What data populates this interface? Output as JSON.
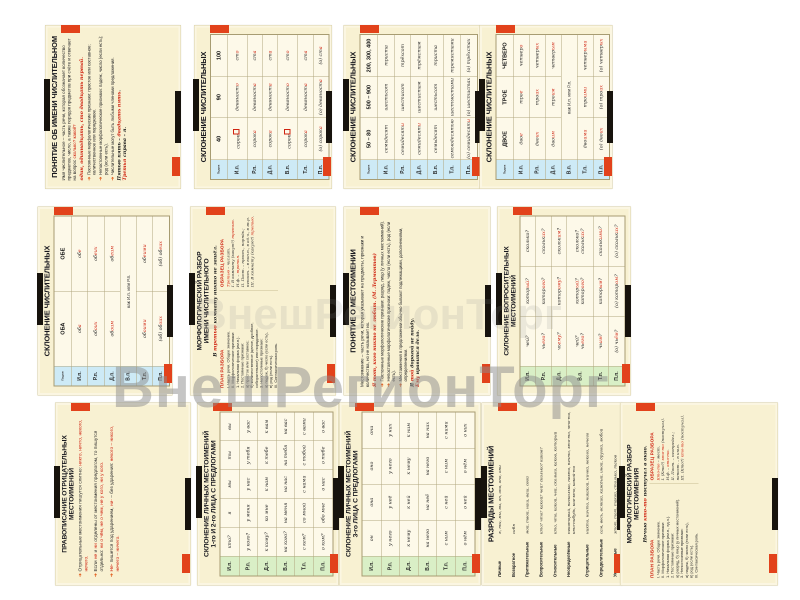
{
  "page": {
    "background": "#ffffff"
  },
  "watermark": {
    "text": "ВнешРегионТорг",
    "text_faint": "ВнешРегионТорг",
    "color": "#8d8d8d"
  },
  "colors": {
    "card_bg": "#f8f1d2",
    "table_bg": "#fdf9e9",
    "case_blue": "#cdeaf6",
    "case_green": "#d9efc6",
    "accent_red": "#cf2310",
    "publisher_orange": "#e2421b",
    "strip_black": "#17130d"
  },
  "cards": [
    {
      "id": "ponyatie-ob-imeni-chislitelnom",
      "type": "concept",
      "title": [
        "ПОНЯТИЕ ОБ ИМЕНИ ЧИСЛИТЕЛЬНОМ"
      ],
      "intro": "Имя числительное – часть речи, которая обозначает количество предметов, число, а также порядок предметов при счёте и отвечает на вопрос {сколько?} {какой?}",
      "redline": "один, одиннадцать, сто двадцать первый.",
      "bullets": [
        "Постоянные морфологические признаки: простое или составное; количественное или порядковое.",
        "Непостоянные морфологические признаки: падеж, число (если есть); род (если есть).",
        "Числительные могут быть любыми членами предложения."
      ],
      "examples": [
        "Пятью пять – {двадцать пять}.",
        "{Третья} справа – я."
      ]
    },
    {
      "id": "sklonenie-40-90-100",
      "type": "table",
      "case_color": "blue",
      "title": [
        "СКЛОНЕНИЕ ЧИСЛИТЕЛЬНЫХ"
      ],
      "corner": "Падеж",
      "header": [
        "40",
        "90",
        "100"
      ],
      "rows": [
        {
          "c": "И.п.",
          "cells": [
            "сорок{□}",
            "девяност{о}",
            "ст{о}"
          ]
        },
        {
          "c": "Р.п.",
          "cells": [
            "сорок{а}",
            "девяност{а}",
            "ст{а}"
          ]
        },
        {
          "c": "Д.п.",
          "cells": [
            "сорок{а}",
            "девяност{а}",
            "ст{а}"
          ]
        },
        {
          "c": "В.п.",
          "cells": [
            "сорок{□}",
            "девяност{о}",
            "ст{о}"
          ]
        },
        {
          "c": "Т.п.",
          "cells": [
            "сорок{а}",
            "девяност{а}",
            "ст{а}"
          ]
        },
        {
          "c": "П.п.",
          "cells": [
            "(о) сорок{а}",
            "(о) девяност{а}",
            "(о) ст{а}"
          ]
        }
      ]
    },
    {
      "id": "sklonenie-50-80-500-900",
      "type": "table",
      "case_color": "blue",
      "title": [
        "СКЛОНЕНИЕ ЧИСЛИТЕЛЬНЫХ"
      ],
      "corner": "Падеж",
      "header": [
        "50 – 80",
        "500 – 900",
        "200, 300, 400"
      ],
      "rows": [
        {
          "c": "И.п.",
          "cells": [
            "семьдесят",
            "шестьсот",
            "триста"
          ]
        },
        {
          "c": "Р.п.",
          "cells": [
            "семидесят{и}",
            "шестисот",
            "трёхсот"
          ]
        },
        {
          "c": "Д.п.",
          "cells": [
            "семидесят{и}",
            "шестистам",
            "трёмстам"
          ]
        },
        {
          "c": "В.п.",
          "cells": [
            "семьдесят",
            "шестьсот",
            "триста"
          ]
        },
        {
          "c": "Т.п.",
          "cells": [
            "семьюдесятью",
            "шестьюстами",
            "тремястами"
          ]
        },
        {
          "c": "П.п.",
          "cells": [
            "(о) семидесят{и}",
            "(о) шестистах",
            "(о) трёхстах"
          ]
        }
      ]
    },
    {
      "id": "sklonenie-dvoe-troe-chetvero",
      "type": "table",
      "case_color": "blue",
      "title": [
        "СКЛОНЕНИЕ ЧИСЛИТЕЛЬНЫХ"
      ],
      "corner": "Падеж",
      "header": [
        "ДВОЕ",
        "ТРОЕ",
        "ЧЕТВЕРО"
      ],
      "rows": [
        {
          "c": "И.п.",
          "cells": [
            "дво{е}",
            "тро{е}",
            "четвер{о}"
          ]
        },
        {
          "c": "Р.п.",
          "cells": [
            "дво{их}",
            "тро{их}",
            "четвер{ых}"
          ]
        },
        {
          "c": "Д.п.",
          "cells": [
            "дво{им}",
            "тро{им}",
            "четвер{ым}"
          ]
        },
        {
          "c": "В.п.",
          "merged": "как И.п. или Р.п."
        },
        {
          "c": "Т.п.",
          "cells": [
            "дво{ими}",
            "тро{ими}",
            "четвер{ыми}"
          ]
        },
        {
          "c": "П.п.",
          "cells": [
            "(о) дво{их}",
            "(о) тро{их}",
            "(о) четвер{ых}"
          ]
        }
      ]
    },
    {
      "id": "sklonenie-oba-obe",
      "type": "table",
      "case_color": "blue",
      "title": [
        "СКЛОНЕНИЕ ЧИСЛИТЕЛЬНЫХ"
      ],
      "corner": "Падеж",
      "header": [
        "ОБА",
        "ОБЕ"
      ],
      "rows": [
        {
          "c": "И.п.",
          "cells": [
            "об{а}",
            "об{е}"
          ]
        },
        {
          "c": "Р.п.",
          "cells": [
            "об{оих}",
            "об{еих}"
          ]
        },
        {
          "c": "Д.п.",
          "cells": [
            "об{оим}",
            "об{еим}"
          ]
        },
        {
          "c": "В.п.",
          "merged": "как И.п. или Р.п."
        },
        {
          "c": "Т.п.",
          "cells": [
            "об{оими}",
            "об{еими}"
          ]
        },
        {
          "c": "П.п.",
          "cells": [
            "(об) об{оих}",
            "(об) об{еих}"
          ]
        }
      ]
    },
    {
      "id": "morf-razbor-chislitelnogo",
      "type": "morph",
      "title": [
        "МОРФОЛОГИЧЕСКИЙ РАЗБОР",
        "ИМЕНИ ЧИСЛИТЕЛЬНОГО"
      ],
      "sentence": "В {третью} комнату никто не зашёл.",
      "plan_heading": "ПЛАН РАЗБОРА",
      "sample_heading": "ОБРАЗЕЦ РАЗБОРА",
      "plan": [
        "I. Часть речи. Общее значение.",
        "II. Морфологические признаки:",
        "1. Начальная форма (им.п.).",
        "2. Постоянные признаки:",
        "а) простое или составное;",
        "б) количественное (целое, дробное, собирательное) или порядковое.",
        "3. Непостоянные признаки:",
        "а) падеж, б) число (если есть),",
        "в) род (если есть).",
        "III. Синтаксическая роль."
      ],
      "sample": [
        "{Третью} – числит.",
        "I. В комнату (какую?) {третью}.",
        "Н.ф. – {третья}.",
        "II. Пост. – прост., порядк.;",
        "непост. – в вин.п., в ед.ч., в ж.р.",
        "III. В комнату (какую?) {третью}."
      ]
    },
    {
      "id": "ponyatie-o-mestoimenii",
      "type": "concept",
      "title": [
        "ПОНЯТИЕ О МЕСТОИМЕНИИ"
      ],
      "intro": "Местоимение – часть речи, которая указывает на предметы, признаки и количества, но не называет их.",
      "redline": "Я тот, {кого} никто не любит. (М. Лермонтов)",
      "bullets": [
        "Постоянные морфологические признаки: разряд, лицо (у личных местоимений).",
        "Непостоянные морфологические признаки: падеж, число (если есть), род (если есть).",
        "Местоимения в предложении обычно бывают подлежащими, дополнениями, определениями."
      ],
      "examples": [
        "Я {той} дорогой не пойду.",
        "{Ему} нравится дело."
      ]
    },
    {
      "id": "sklonenie-voprositelnyh-mestoimenij",
      "type": "table",
      "case_color": "green",
      "title": [
        "СКЛОНЕНИЕ ВОПРОСИТЕЛЬНЫХ",
        "МЕСТОИМЕНИЙ"
      ],
      "rows": [
        {
          "c": "И.п.",
          "cells": [
            "чей?",
            "котор{ый}?",
            "сколько?"
          ]
        },
        {
          "c": "Р.п.",
          "cells": [
            "чь{его}?",
            "котор{ого}?",
            "скольк{их}?"
          ]
        },
        {
          "c": "Д.п.",
          "cells": [
            "чь{ему}?",
            "котор{ому}?",
            "скольк{им}?"
          ]
        },
        {
          "c": "В.п.",
          "cells": [
            "чей?\nчь{его}?",
            "котор{ый}?\nкотор{ого}?",
            "сколько?\nскольк{их}?"
          ]
        },
        {
          "c": "Т.п.",
          "cells": [
            "чь{им}?",
            "котор{ым}?",
            "скольк{ими}?"
          ]
        },
        {
          "c": "П.п.",
          "cells": [
            "(о) чь{ём}?",
            "(о) котор{ом}?",
            "(о) скольк{их}?"
          ]
        }
      ]
    },
    {
      "id": "pravopisanie-otricatelnyh-mestoimenij",
      "type": "rules",
      "title": [
        "ПРАВОПИСАНИЕ ОТРИЦАТЕЛЬНЫХ",
        "МЕСТОИМЕНИЙ"
      ],
      "bullets": [
        "Отрицательные местоимения пишутся слитно: {никто, ничто, некого, нечего.}",
        "Если {не} и {ни} отделены от местоимения предлогом, то пишутся отдельно: {ни о чём, не о чем, не у кого, ни у кого.}",
        "{Не-} пишется под ударением, {ни-} – без ударения: {некого – никого, нечего – ничего.}"
      ]
    },
    {
      "id": "sklonenie-lichnyh-1-2-lica",
      "type": "table",
      "case_color": "green",
      "title": [
        "СКЛОНЕНИЕ ЛИЧНЫХ МЕСТОИМЕНИЙ",
        "1-го И 2-го ЛИЦА С ПРЕДЛОГАМИ"
      ],
      "rows": [
        {
          "c": "И.п.",
          "cells": [
            "кто?",
            "я",
            "мы",
            "ты",
            "вы"
          ]
        },
        {
          "c": "Р.п.",
          "cells": [
            "у кого?",
            "у меня",
            "у нас",
            "у тебя",
            "у вас"
          ]
        },
        {
          "c": "Д.п.",
          "cells": [
            "к кому?",
            "ко мне",
            "к нам",
            "к тебе",
            "к вам"
          ]
        },
        {
          "c": "В.п.",
          "cells": [
            "на кого?",
            "на меня",
            "на нас",
            "на тебя",
            "на вас"
          ]
        },
        {
          "c": "Т.п.",
          "cells": [
            "с кем?",
            "со мной",
            "с нами",
            "с тобой",
            "с вами"
          ]
        },
        {
          "c": "П.п.",
          "cells": [
            "о ком?",
            "обо мне",
            "о нас",
            "о тебе",
            "о вас"
          ]
        }
      ]
    },
    {
      "id": "sklonenie-lichnyh-3-lica",
      "type": "table",
      "case_color": "green",
      "title": [
        "СКЛОНЕНИЕ ЛИЧНЫХ МЕСТОИМЕНИЙ",
        "3-го ЛИЦА С ПРЕДЛОГАМИ"
      ],
      "rows": [
        {
          "c": "И.п.",
          "cells": [
            "он",
            "она",
            "оно",
            "они"
          ]
        },
        {
          "c": "Р.п.",
          "cells": [
            "у него",
            "у неё",
            "у него",
            "у них"
          ]
        },
        {
          "c": "Д.п.",
          "cells": [
            "к нему",
            "к ней",
            "к нему",
            "к ним"
          ]
        },
        {
          "c": "В.п.",
          "cells": [
            "на него",
            "на неё",
            "на него",
            "на них"
          ]
        },
        {
          "c": "Т.п.",
          "cells": [
            "с ним",
            "с ней",
            "с ним",
            "с ними"
          ]
        },
        {
          "c": "П.п.",
          "cells": [
            "о нём",
            "о ней",
            "о нём",
            "о них"
          ]
        }
      ]
    },
    {
      "id": "razryady-mestoimenij",
      "type": "categories",
      "title": [
        "РАЗРЯДЫ МЕСТОИМЕНИЙ"
      ],
      "items": [
        {
          "name": "Личные",
          "words": "я, ты, мы, вы, он, она, оно, они"
        },
        {
          "name": "Возвратное",
          "words": "себя"
        },
        {
          "name": "Притяжательные",
          "words": "мой, твой, наш, ваш, свой"
        },
        {
          "name": "Вопросительные",
          "words": "кто? что? какой? чей? сколько? каков?"
        },
        {
          "name": "Относительные",
          "words": "кто, что, какой, чей, сколько, каков, который"
        },
        {
          "name": "Неопределённые",
          "words": "некоторый, несколько, некто, нечто, кто-то, что-то, кто-нибудь, кое-кто, какой-то"
        },
        {
          "name": "Отрицательные",
          "words": "никто, ничто, никакой, ничей, некого, нечего"
        },
        {
          "name": "Определительные",
          "words": "сам, весь, всякий, каждый, иной, другой, любой"
        },
        {
          "name": "Указательные",
          "words": "этот, тот, такой, столько, таков"
        }
      ]
    },
    {
      "id": "morf-razbor-mestoimeniya",
      "type": "morph",
      "title": [
        "МОРФОЛОГИЧЕСКИЙ РАЗБОР",
        "МЕСТОИМЕНИЯ"
      ],
      "sentence": "Ночью {кто-то} постучал в окно.",
      "plan_heading": "ПЛАН РАЗБОРА",
      "sample_heading": "ОБРАЗЕЦ РАЗБОРА",
      "plan": [
        "I. Часть речи. Общее значение.",
        "II. Морфологические признаки:",
        "1. Начальная форма (им.п., ед.ч.).",
        "2. Постоянные признаки:",
        "а) разряд, б) лицо (у личных местоимений).",
        "3. Непостоянные признаки:",
        "а) падеж, б) число (если есть),",
        "в) род (если есть).",
        "III. Синтаксическая роль."
      ],
      "sample": [
        "{Кто-то} – мест.",
        "I. (Кто?) {кто-то} (постучал).",
        "Н.ф. – {кто-то}.",
        "II. Пост. – неопредел.;",
        "непост. – в им.п.",
        "III. (Кто?) {кто-то} (постучал)."
      ]
    }
  ]
}
